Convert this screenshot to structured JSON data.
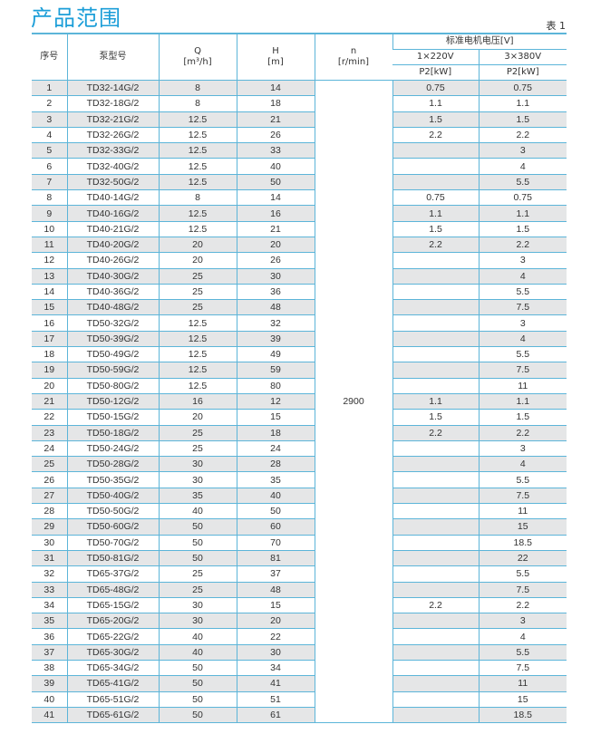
{
  "title": "产品范围",
  "table_label": "表 1",
  "headers": {
    "no": "序号",
    "model": "泵型号",
    "q": "Q",
    "q_unit": "[m³/h]",
    "h": "H",
    "h_unit": "[m]",
    "n": "n",
    "n_unit": "[r/min]",
    "voltage": "标准电机电压[V]",
    "v1": "1×220V",
    "v3": "3×380V",
    "p1": "P2[kW]",
    "p3": "P2[kW]"
  },
  "speed": "2900",
  "colors": {
    "accent": "#1c9ed8",
    "grid": "#5cb5d9",
    "stripe": "#e5e6e7"
  },
  "rows": [
    [
      "1",
      "TD32-14G/2",
      "8",
      "14",
      "0.75",
      "0.75"
    ],
    [
      "2",
      "TD32-18G/2",
      "8",
      "18",
      "1.1",
      "1.1"
    ],
    [
      "3",
      "TD32-21G/2",
      "12.5",
      "21",
      "1.5",
      "1.5"
    ],
    [
      "4",
      "TD32-26G/2",
      "12.5",
      "26",
      "2.2",
      "2.2"
    ],
    [
      "5",
      "TD32-33G/2",
      "12.5",
      "33",
      "",
      "3"
    ],
    [
      "6",
      "TD32-40G/2",
      "12.5",
      "40",
      "",
      "4"
    ],
    [
      "7",
      "TD32-50G/2",
      "12.5",
      "50",
      "",
      "5.5"
    ],
    [
      "8",
      "TD40-14G/2",
      "8",
      "14",
      "0.75",
      "0.75"
    ],
    [
      "9",
      "TD40-16G/2",
      "12.5",
      "16",
      "1.1",
      "1.1"
    ],
    [
      "10",
      "TD40-21G/2",
      "12.5",
      "21",
      "1.5",
      "1.5"
    ],
    [
      "11",
      "TD40-20G/2",
      "20",
      "20",
      "2.2",
      "2.2"
    ],
    [
      "12",
      "TD40-26G/2",
      "20",
      "26",
      "",
      "3"
    ],
    [
      "13",
      "TD40-30G/2",
      "25",
      "30",
      "",
      "4"
    ],
    [
      "14",
      "TD40-36G/2",
      "25",
      "36",
      "",
      "5.5"
    ],
    [
      "15",
      "TD40-48G/2",
      "25",
      "48",
      "",
      "7.5"
    ],
    [
      "16",
      "TD50-32G/2",
      "12.5",
      "32",
      "",
      "3"
    ],
    [
      "17",
      "TD50-39G/2",
      "12.5",
      "39",
      "",
      "4"
    ],
    [
      "18",
      "TD50-49G/2",
      "12.5",
      "49",
      "",
      "5.5"
    ],
    [
      "19",
      "TD50-59G/2",
      "12.5",
      "59",
      "",
      "7.5"
    ],
    [
      "20",
      "TD50-80G/2",
      "12.5",
      "80",
      "",
      "11"
    ],
    [
      "21",
      "TD50-12G/2",
      "16",
      "12",
      "1.1",
      "1.1"
    ],
    [
      "22",
      "TD50-15G/2",
      "20",
      "15",
      "1.5",
      "1.5"
    ],
    [
      "23",
      "TD50-18G/2",
      "25",
      "18",
      "2.2",
      "2.2"
    ],
    [
      "24",
      "TD50-24G/2",
      "25",
      "24",
      "",
      "3"
    ],
    [
      "25",
      "TD50-28G/2",
      "30",
      "28",
      "",
      "4"
    ],
    [
      "26",
      "TD50-35G/2",
      "30",
      "35",
      "",
      "5.5"
    ],
    [
      "27",
      "TD50-40G/2",
      "35",
      "40",
      "",
      "7.5"
    ],
    [
      "28",
      "TD50-50G/2",
      "40",
      "50",
      "",
      "11"
    ],
    [
      "29",
      "TD50-60G/2",
      "50",
      "60",
      "",
      "15"
    ],
    [
      "30",
      "TD50-70G/2",
      "50",
      "70",
      "",
      "18.5"
    ],
    [
      "31",
      "TD50-81G/2",
      "50",
      "81",
      "",
      "22"
    ],
    [
      "32",
      "TD65-37G/2",
      "25",
      "37",
      "",
      "5.5"
    ],
    [
      "33",
      "TD65-48G/2",
      "25",
      "48",
      "",
      "7.5"
    ],
    [
      "34",
      "TD65-15G/2",
      "30",
      "15",
      "2.2",
      "2.2"
    ],
    [
      "35",
      "TD65-20G/2",
      "30",
      "20",
      "",
      "3"
    ],
    [
      "36",
      "TD65-22G/2",
      "40",
      "22",
      "",
      "4"
    ],
    [
      "37",
      "TD65-30G/2",
      "40",
      "30",
      "",
      "5.5"
    ],
    [
      "38",
      "TD65-34G/2",
      "50",
      "34",
      "",
      "7.5"
    ],
    [
      "39",
      "TD65-41G/2",
      "50",
      "41",
      "",
      "11"
    ],
    [
      "40",
      "TD65-51G/2",
      "50",
      "51",
      "",
      "15"
    ],
    [
      "41",
      "TD65-61G/2",
      "50",
      "61",
      "",
      "18.5"
    ]
  ]
}
